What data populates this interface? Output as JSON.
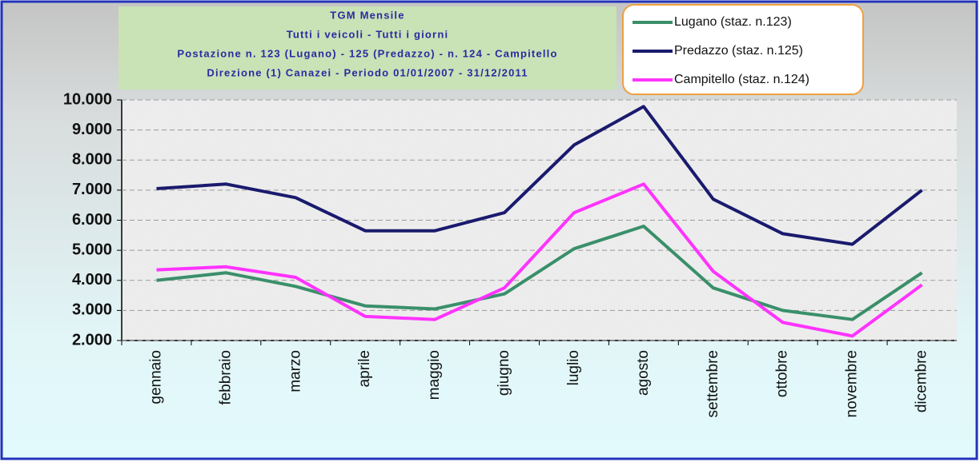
{
  "chart_data": {
    "type": "line",
    "title": [
      "TGM Mensile",
      "Tutti i veicoli - Tutti i giorni",
      "Postazione n. 123 (Lugano) - 125 (Predazzo) - n. 124 - Campitello",
      "Direzione (1) Canazei  -   Periodo 01/01/2007 - 31/12/2011"
    ],
    "categories": [
      "gennaio",
      "febbraio",
      "marzo",
      "aprile",
      "maggio",
      "giugno",
      "luglio",
      "agosto",
      "settembre",
      "ottobre",
      "novembre",
      "dicembre"
    ],
    "series": [
      {
        "name": "Lugano (staz. n.123)",
        "color": "#3a8f6a",
        "values": [
          4000,
          4250,
          3800,
          3150,
          3050,
          3550,
          5050,
          5800,
          3750,
          3000,
          2700,
          4250
        ]
      },
      {
        "name": "Predazzo (staz. n.125)",
        "color": "#1a1a6e",
        "values": [
          7050,
          7200,
          6750,
          5650,
          5650,
          6250,
          8500,
          9780,
          6700,
          5550,
          5200,
          7000
        ]
      },
      {
        "name": "Campitello (staz. n.124)",
        "color": "#ff33ff",
        "values": [
          4350,
          4450,
          4100,
          2800,
          2700,
          3750,
          6250,
          7200,
          4300,
          2600,
          2150,
          3850
        ]
      }
    ],
    "ylim": [
      2000,
      10000
    ],
    "yticks": [
      {
        "value": 2000,
        "label": "2.000"
      },
      {
        "value": 3000,
        "label": "3.000"
      },
      {
        "value": 4000,
        "label": "4.000"
      },
      {
        "value": 5000,
        "label": "5.000"
      },
      {
        "value": 6000,
        "label": "6.000"
      },
      {
        "value": 7000,
        "label": "7.000"
      },
      {
        "value": 8000,
        "label": "8.000"
      },
      {
        "value": 9000,
        "label": "9.000"
      },
      {
        "value": 10000,
        "label": "10.000"
      }
    ],
    "grid": true,
    "legend": "top-right"
  }
}
